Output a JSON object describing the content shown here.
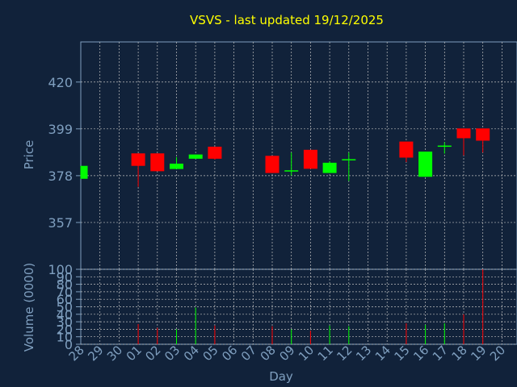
{
  "chart_data": {
    "type": "candlestick",
    "title": "VSVS - last updated 19/12/2025",
    "xlabel": "Day",
    "price_panel": {
      "ylabel": "Price",
      "ylim": [
        336,
        438
      ],
      "yticks": [
        357,
        378,
        399,
        420
      ]
    },
    "volume_panel": {
      "ylabel": "Volume (0000)",
      "ylim": [
        0,
        100
      ],
      "yticks": [
        0,
        10,
        20,
        30,
        40,
        50,
        60,
        70,
        80,
        90,
        100
      ]
    },
    "x_ticks": [
      "28",
      "29",
      "30",
      "01",
      "02",
      "03",
      "04",
      "05",
      "06",
      "07",
      "08",
      "09",
      "10",
      "11",
      "12",
      "13",
      "14",
      "15",
      "16",
      "17",
      "18",
      "19",
      "20"
    ],
    "candles": [
      {
        "day": "28",
        "open": 376.6,
        "high": 382.4,
        "low": 376.6,
        "close": 382.4,
        "volume": 0
      },
      {
        "day": "01",
        "open": 388.0,
        "high": 388.0,
        "low": 373.0,
        "close": 382.4,
        "volume": 27
      },
      {
        "day": "02",
        "open": 388.0,
        "high": 388.0,
        "low": 380.0,
        "close": 380.0,
        "volume": 22
      },
      {
        "day": "03",
        "open": 381.0,
        "high": 386.3,
        "low": 381.0,
        "close": 383.4,
        "volume": 20
      },
      {
        "day": "04",
        "open": 385.6,
        "high": 387.5,
        "low": 385.6,
        "close": 387.5,
        "volume": 49
      },
      {
        "day": "05",
        "open": 391.0,
        "high": 391.0,
        "low": 385.2,
        "close": 385.6,
        "volume": 25
      },
      {
        "day": "08",
        "open": 386.9,
        "high": 386.9,
        "low": 379.2,
        "close": 379.2,
        "volume": 24
      },
      {
        "day": "09",
        "open": 380.0,
        "high": 388.4,
        "low": 378.0,
        "close": 380.4,
        "volume": 20
      },
      {
        "day": "10",
        "open": 389.6,
        "high": 389.6,
        "low": 381.1,
        "close": 381.1,
        "volume": 18
      },
      {
        "day": "11",
        "open": 379.2,
        "high": 384.5,
        "low": 379.2,
        "close": 383.8,
        "volume": 25
      },
      {
        "day": "12",
        "open": 385.0,
        "high": 388.4,
        "low": 375.6,
        "close": 385.4,
        "volume": 24
      },
      {
        "day": "15",
        "open": 393.3,
        "high": 393.3,
        "low": 384.1,
        "close": 386.1,
        "volume": 28
      },
      {
        "day": "16",
        "open": 377.5,
        "high": 388.8,
        "low": 377.5,
        "close": 388.8,
        "volume": 26
      },
      {
        "day": "17",
        "open": 391.1,
        "high": 393.0,
        "low": 387.9,
        "close": 391.5,
        "volume": 28
      },
      {
        "day": "18",
        "open": 399.2,
        "high": 399.2,
        "low": 387.1,
        "close": 394.8,
        "volume": 40
      },
      {
        "day": "19",
        "open": 399.2,
        "high": 399.2,
        "low": 388.4,
        "close": 393.7,
        "volume": 100
      }
    ],
    "colors": {
      "background": "#11223a",
      "title": "#ffff00",
      "axis_text": "#7f9fbf",
      "up": "#00ff00",
      "down": "#ff0000",
      "grid": "#bfbfbf",
      "axis_line": "#7f9fbf"
    },
    "grid": true
  }
}
